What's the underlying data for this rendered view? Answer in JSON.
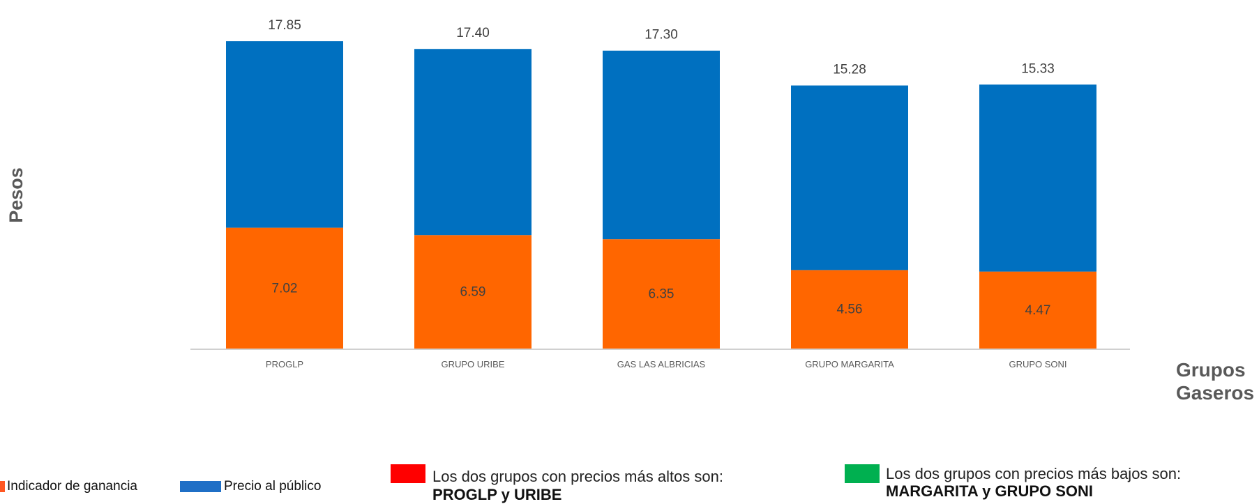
{
  "chart_data": {
    "type": "bar",
    "stacked": true,
    "categories": [
      "PROGLP",
      "GRUPO URIBE",
      "GAS LAS ALBRICIAS",
      "GRUPO MARGARITA",
      "GRUPO SONI"
    ],
    "series": [
      {
        "name": "Indicador de ganancia",
        "values": [
          7.02,
          6.59,
          6.35,
          4.56,
          4.47
        ],
        "color": "#ff6600"
      },
      {
        "name": "Precio al público",
        "values": [
          10.83,
          10.81,
          10.95,
          10.72,
          10.86
        ],
        "color": "#0070c0"
      }
    ],
    "totals": [
      "17.85",
      "17.40",
      "17.30",
      "15.28",
      "15.33"
    ],
    "segment_labels": [
      "7.02",
      "6.59",
      "6.35",
      "4.56",
      "4.47"
    ],
    "xlabel": [
      "Grupos",
      "Gaseros"
    ],
    "ylabel": "Pesos",
    "ylim": [
      0,
      18.3
    ],
    "grid": false,
    "legend_position": "bottom-left"
  },
  "legend": {
    "items": [
      {
        "label": "Indicador de ganancia",
        "color": "#ff5722",
        "icon": "orange-square-icon"
      },
      {
        "label": "Precio al público",
        "color": "#1f6fc6",
        "icon": "blue-square-icon"
      }
    ]
  },
  "notes": {
    "high": {
      "color": "#ff0000",
      "text": "Los dos grupos con precios más altos son:",
      "bold": "PROGLP y URIBE"
    },
    "low": {
      "color": "#00b050",
      "text": "Los dos grupos con precios más bajos son:",
      "bold": "MARGARITA y GRUPO SONI"
    }
  }
}
